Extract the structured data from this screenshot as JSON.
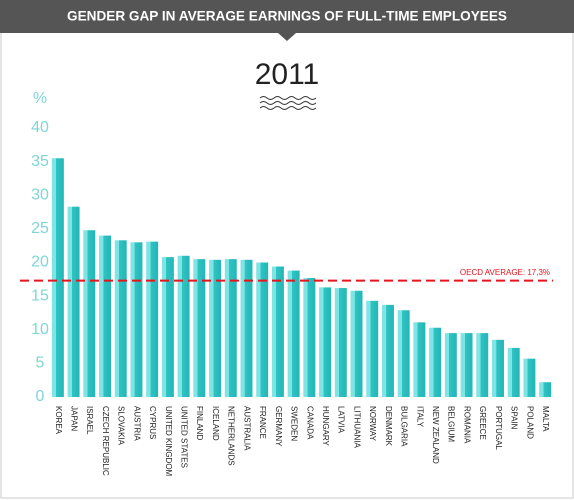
{
  "chart_data": {
    "type": "bar",
    "title": "GENDER GAP IN AVERAGE EARNINGS OF FULL-TIME EMPLOYEES",
    "subtitle": "2011",
    "y_label": "%",
    "categories": [
      "KOREA",
      "JAPAN",
      "ISRAEL",
      "CZECH REPUBLIC",
      "SLOVAKIA",
      "AUSTRIA",
      "CYPRUS",
      "UNITED KINGDOM",
      "UNITED STATES",
      "FINLAND",
      "ICELAND",
      "NETHERLANDS",
      "AUSTRALIA",
      "FRANCE",
      "GERMANY",
      "SWEDEN",
      "CANADA",
      "HUNGARY",
      "LATVIA",
      "LITHUANIA",
      "NORWAY",
      "DENMARK",
      "BULGARIA",
      "ITALY",
      "NEW ZEALAND",
      "BELGIUM",
      "ROMANIA",
      "GREECE",
      "PORTUGAL",
      "SPAIN",
      "POLAND",
      "MALTA"
    ],
    "values": [
      35.5,
      28.3,
      24.8,
      24.0,
      23.3,
      23.0,
      23.1,
      20.8,
      21.0,
      20.5,
      20.4,
      20.5,
      20.4,
      20.0,
      19.4,
      18.8,
      17.7,
      16.3,
      16.2,
      15.8,
      14.3,
      13.7,
      12.9,
      11.1,
      10.3,
      9.5,
      9.5,
      9.5,
      8.5,
      7.3,
      5.7,
      2.2
    ],
    "color": "#2fc4c4",
    "ylim": [
      0,
      40
    ],
    "yticks": [
      0,
      5,
      10,
      15,
      20,
      25,
      30,
      35,
      40
    ],
    "grid": false,
    "reference_line": {
      "value": 17.3,
      "label": "OECD AVERAGE: 17,3%",
      "color": "#e8141c"
    }
  }
}
